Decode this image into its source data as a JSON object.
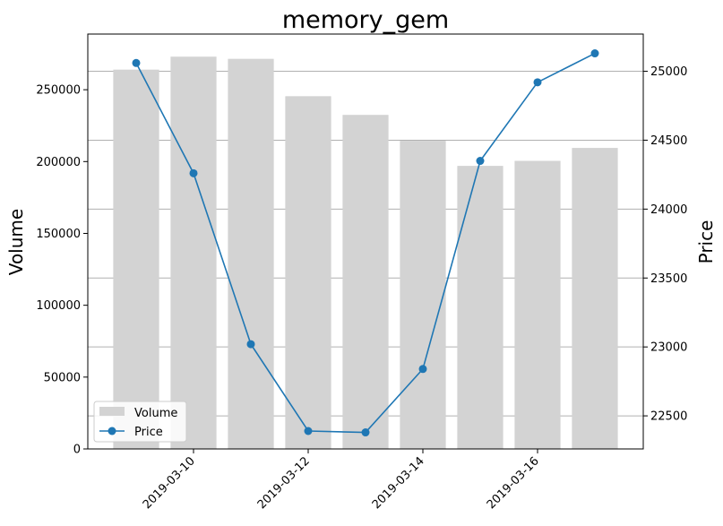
{
  "chart_data": {
    "type": "bar+line",
    "title": "memory_gem",
    "ylabel_left": "Volume",
    "ylabel_right": "Price",
    "x": [
      "2019-03-09",
      "2019-03-10",
      "2019-03-11",
      "2019-03-12",
      "2019-03-13",
      "2019-03-14",
      "2019-03-15",
      "2019-03-16",
      "2019-03-17"
    ],
    "x_tick_labels": [
      "2019-03-10",
      "2019-03-12",
      "2019-03-14",
      "2019-03-16"
    ],
    "series": [
      {
        "name": "Volume",
        "kind": "bar",
        "axis": "left",
        "color": "#d3d3d3",
        "values": [
          264000,
          273000,
          271500,
          245500,
          232500,
          214500,
          197000,
          200500,
          209500
        ]
      },
      {
        "name": "Price",
        "kind": "line",
        "axis": "right",
        "color": "#1f77b4",
        "values": [
          25060,
          24260,
          23020,
          22390,
          22380,
          22840,
          24350,
          24920,
          25130
        ]
      }
    ],
    "ylim_left": [
      0,
      288750
    ],
    "yticks_left": [
      0,
      50000,
      100000,
      150000,
      200000,
      250000
    ],
    "ylim_right": [
      22260,
      25270
    ],
    "yticks_right": [
      22500,
      23000,
      23500,
      24000,
      24500,
      25000
    ],
    "grid": "horizontal, right axis",
    "legend": "lower-left"
  }
}
